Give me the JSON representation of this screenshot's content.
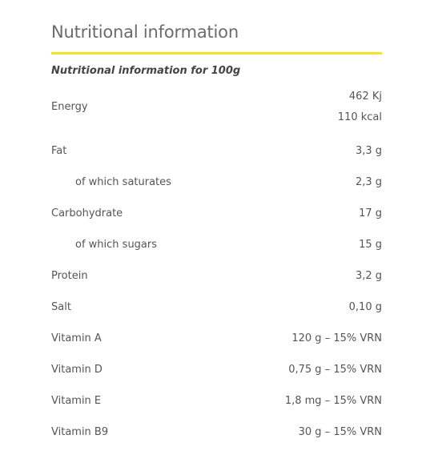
{
  "title": "Nutritional information",
  "subtitle": "Nutritional information for 100g",
  "accent_color": "#f5e22a",
  "energy": {
    "label": "Energy",
    "kj": "462 Kj",
    "kcal": "110 kcal"
  },
  "rows": [
    {
      "label": "Fat",
      "value": "3,3 g"
    },
    {
      "label": "of which saturates",
      "value": "2,3 g"
    },
    {
      "label": "Carbohydrate",
      "value": "17 g"
    },
    {
      "label": "of which sugars",
      "value": "15 g"
    },
    {
      "label": "Protein",
      "value": "3,2 g"
    },
    {
      "label": "Salt",
      "value": "0,10 g"
    },
    {
      "label": "Vitamin A",
      "value": "120  g – 15% VRN"
    },
    {
      "label": "Vitamin D",
      "value": "0,75  g – 15% VRN"
    },
    {
      "label": "Vitamin E",
      "value": "1,8 mg – 15% VRN"
    },
    {
      "label": "Vitamin B9",
      "value": "30  g – 15% VRN"
    }
  ]
}
